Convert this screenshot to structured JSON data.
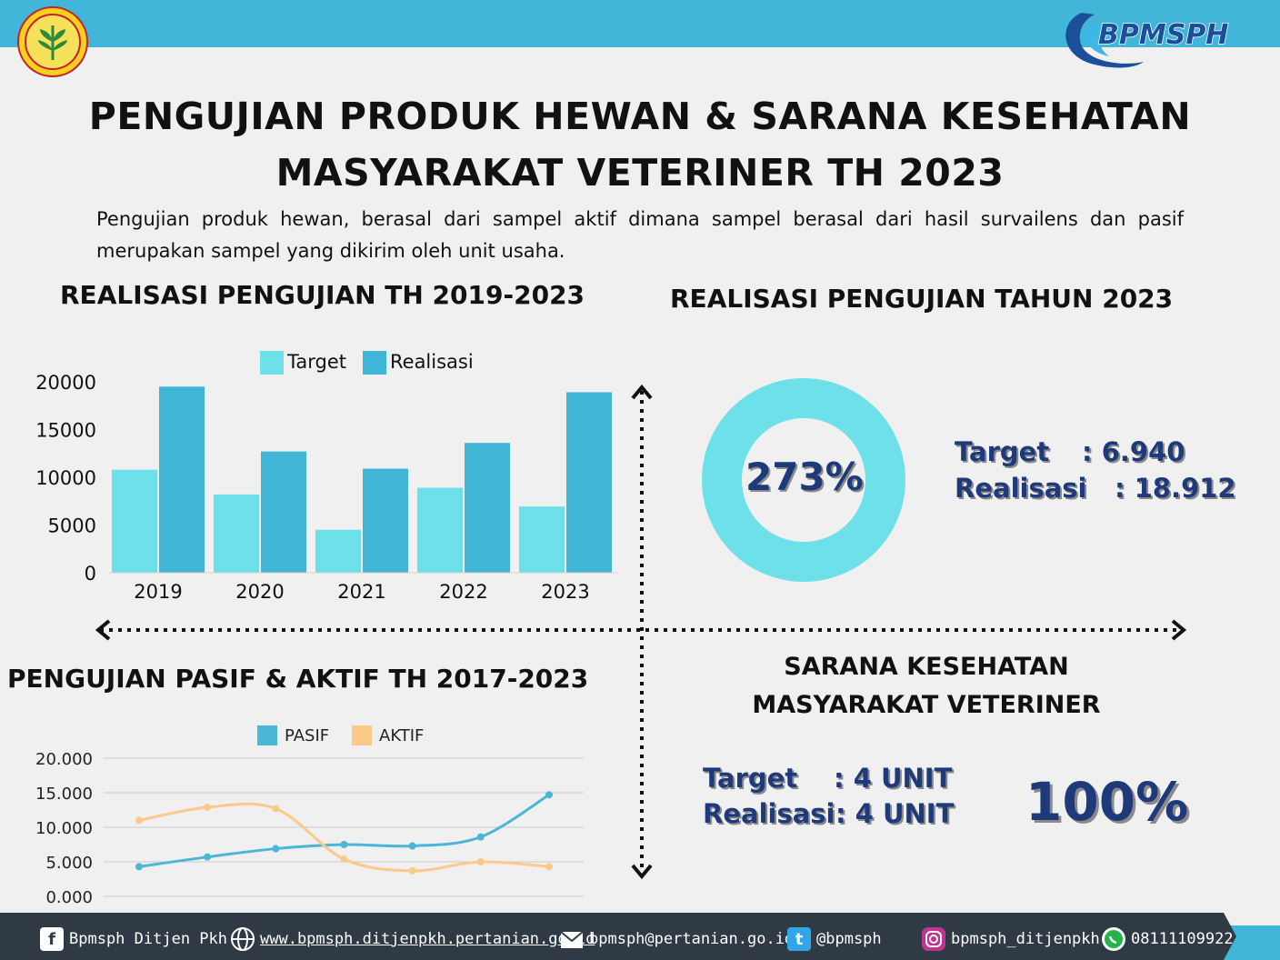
{
  "header": {
    "title_line1": "PENGUJIAN PRODUK HEWAN  & SARANA KESEHATAN",
    "title_line2": "MASYARAKAT VETERINER TH 2023",
    "intro": "Pengujian produk hewan, berasal dari sampel  aktif dimana sampel berasal dari hasil survailens dan pasif merupakan sampel yang dikirim oleh unit usaha.",
    "logo_text": "BPMSPH"
  },
  "colors": {
    "topbar": "#41b6d8",
    "target_bar": "#6ee0ea",
    "realisasi_bar": "#42b6d6",
    "pasif_line": "#4bb6d6",
    "aktif_line": "#fbc98a",
    "stat_text": "#1f3a7a",
    "footer": "#2f3a45"
  },
  "sections": {
    "bar_title": "REALISASI PENGUJIAN TH 2019-2023",
    "donut_title": "REALISASI PENGUJIAN TAHUN 2023",
    "line_title": "PENGUJIAN PASIF & AKTIF TH 2017-2023",
    "sarana_title_line1": "SARANA KESEHATAN",
    "sarana_title_line2": "MASYARAKAT VETERINER"
  },
  "chart_data": [
    {
      "type": "bar",
      "categories": [
        "2019",
        "2020",
        "2021",
        "2022",
        "2023"
      ],
      "series": [
        {
          "name": "Target",
          "values": [
            10800,
            8200,
            4500,
            8900,
            6940
          ]
        },
        {
          "name": "Realisasi",
          "values": [
            19500,
            12700,
            10900,
            13600,
            18912
          ]
        }
      ],
      "ylim": [
        0,
        20000
      ],
      "yticks": [
        "0",
        "5000",
        "10000",
        "15000",
        "20000"
      ],
      "legend": "top",
      "grid": false
    },
    {
      "type": "pie",
      "subtype": "donut",
      "center_label": "273%",
      "values": [
        100
      ],
      "labels": [
        "Realisasi"
      ],
      "colors": [
        "#6ee0ea"
      ]
    },
    {
      "type": "line",
      "x_count": 7,
      "series": [
        {
          "name": "PASIF",
          "values": [
            4300,
            5700,
            6900,
            7500,
            7300,
            8600,
            14700
          ]
        },
        {
          "name": "AKTIF",
          "values": [
            11000,
            12900,
            12700,
            5400,
            3700,
            5000,
            4300
          ]
        }
      ],
      "ylim": [
        0,
        20000
      ],
      "yticks": [
        "0.000",
        "5.000",
        "10.000",
        "15.000",
        "20.000"
      ],
      "legend": "top",
      "grid": true
    }
  ],
  "stats_2023": {
    "target_label": "Target",
    "target_value": ": 6.940",
    "realisasi_label": "Realisasi",
    "realisasi_value": ": 18.912",
    "percent": "273%"
  },
  "sarana": {
    "target_label": "Target",
    "target_value": ": 4 UNIT",
    "realisasi_label": "Realisasi",
    "realisasi_value": ": 4 UNIT",
    "percent": "100%"
  },
  "footer": {
    "facebook": "Bpmsph Ditjen Pkh",
    "website": "www.bpmsph.ditjenpkh.pertanian.go.id",
    "email": "bpmsph@pertanian.go.id",
    "twitter": "@bpmsph",
    "instagram": "bpmsph_ditjenpkh",
    "whatsapp": "08111109922",
    "icons": [
      "facebook-icon",
      "globe-icon",
      "mail-icon",
      "twitter-icon",
      "instagram-icon",
      "whatsapp-icon"
    ]
  }
}
